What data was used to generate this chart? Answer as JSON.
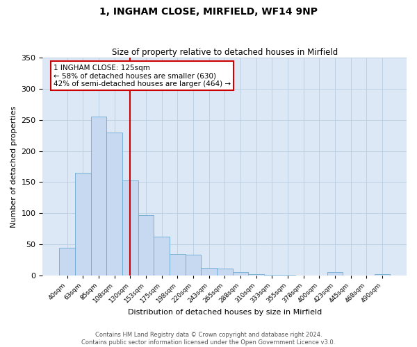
{
  "title": "1, INGHAM CLOSE, MIRFIELD, WF14 9NP",
  "subtitle": "Size of property relative to detached houses in Mirfield",
  "xlabel": "Distribution of detached houses by size in Mirfield",
  "ylabel": "Number of detached properties",
  "bar_color": "#c6d9f0",
  "bar_edge_color": "#6aaad4",
  "vline_color": "#cc0000",
  "annotation_title": "1 INGHAM CLOSE: 125sqm",
  "annotation_line1": "← 58% of detached houses are smaller (630)",
  "annotation_line2": "42% of semi-detached houses are larger (464) →",
  "footer_line1": "Contains HM Land Registry data © Crown copyright and database right 2024.",
  "footer_line2": "Contains public sector information licensed under the Open Government Licence v3.0.",
  "categories": [
    "40sqm",
    "63sqm",
    "85sqm",
    "108sqm",
    "130sqm",
    "153sqm",
    "175sqm",
    "198sqm",
    "220sqm",
    "243sqm",
    "265sqm",
    "288sqm",
    "310sqm",
    "333sqm",
    "355sqm",
    "378sqm",
    "400sqm",
    "423sqm",
    "445sqm",
    "468sqm",
    "490sqm"
  ],
  "values": [
    45,
    165,
    255,
    230,
    153,
    97,
    62,
    35,
    33,
    12,
    11,
    5,
    2,
    1,
    1,
    0,
    0,
    5,
    0,
    0,
    2
  ],
  "ylim": [
    0,
    350
  ],
  "yticks": [
    0,
    50,
    100,
    150,
    200,
    250,
    300,
    350
  ],
  "bg_color": "#dce8f5",
  "fig_color": "#ffffff",
  "vline_idx": 4
}
